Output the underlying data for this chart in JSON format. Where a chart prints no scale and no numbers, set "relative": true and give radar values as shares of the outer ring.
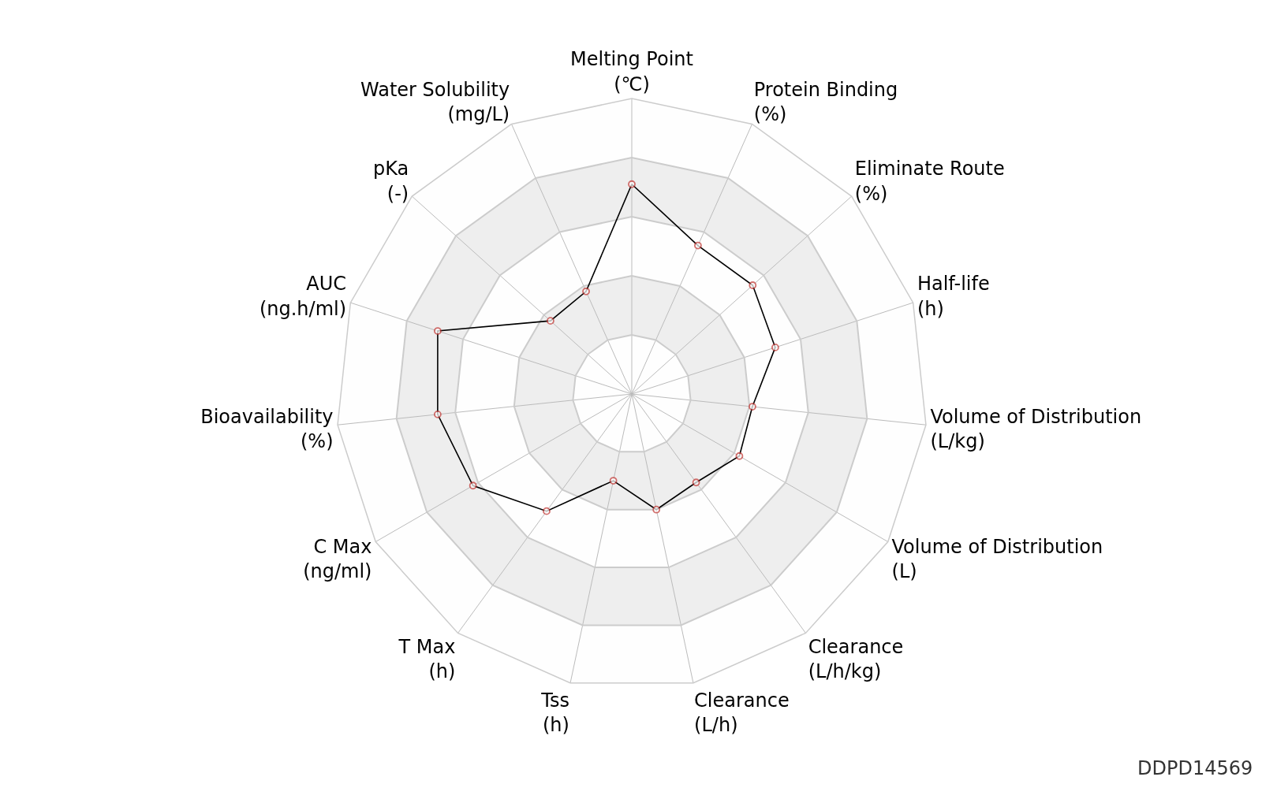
{
  "chart_data": {
    "type": "radar",
    "relative": true,
    "categories": [
      "Melting Point\n(℃)",
      "Protein Binding\n(%)",
      "Eliminate Route\n(%)",
      "Half-life\n(h)",
      "Volume of Distribution\n(L/kg)",
      "Volume of Distribution\n(L)",
      "Clearance\n(L/h/kg)",
      "Clearance\n(L/h)",
      "Tss\n(h)",
      "T Max\n(h)",
      "C Max\n(ng/ml)",
      "Bioavailability\n(%)",
      "AUC\n(ng.h/ml)",
      "pKa\n(-)",
      "Water Solubility\n(mg/L)"
    ],
    "series": [
      {
        "color": "#000000",
        "colors": [
          "#c23531",
          "#c23531",
          "#c23531",
          "#c23531",
          "#c23531",
          "#c23531",
          "#c23531",
          "#c23531",
          "#c23531",
          "#c23531",
          "#c23531",
          "#c23531",
          "#c23531",
          "#c23531",
          "#c23531"
        ],
        "values": [
          0.71,
          0.55,
          0.55,
          0.51,
          0.41,
          0.42,
          0.37,
          0.4,
          0.3,
          0.49,
          0.62,
          0.66,
          0.69,
          0.37,
          0.38
        ]
      }
    ],
    "marker": "circle",
    "line_style": "solid",
    "grid": true,
    "annotations": [
      "DDPD14569"
    ]
  }
}
